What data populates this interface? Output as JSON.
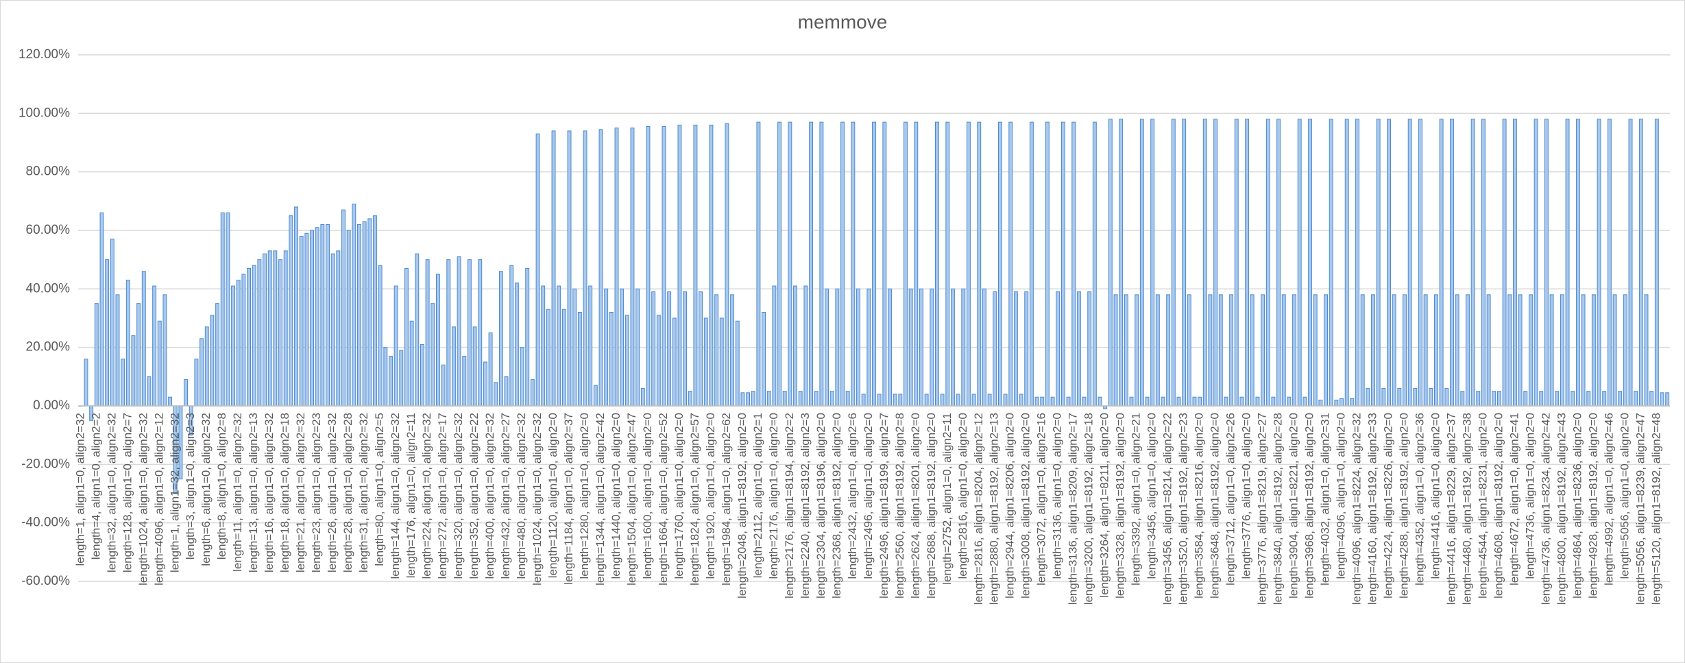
{
  "chart_data": {
    "type": "bar",
    "title": "memmove",
    "color": "#a9c8ec",
    "edge_color": "#4a8ad0",
    "grid": true,
    "ylim": [
      -60,
      120
    ],
    "yticks": [
      {
        "value": -60,
        "label": "-60.00%"
      },
      {
        "value": -40,
        "label": "-40.00%"
      },
      {
        "value": -20,
        "label": "-20.00%"
      },
      {
        "value": 0,
        "label": "0.00%"
      },
      {
        "value": 20,
        "label": "20.00%"
      },
      {
        "value": 40,
        "label": "40.00%"
      },
      {
        "value": 60,
        "label": "60.00%"
      },
      {
        "value": 80,
        "label": "80.00%"
      },
      {
        "value": 100,
        "label": "100.00%"
      },
      {
        "value": 120,
        "label": "120.00%"
      }
    ],
    "categories": [
      "length=1, align1=0, align2=32",
      null,
      null,
      "length=4, align1=0, align2=2",
      null,
      null,
      "length=32, align1=0, align2=32",
      null,
      null,
      "length=128, align1=0, align2=7",
      null,
      null,
      "length=1024, align1=0, align2=32",
      null,
      null,
      "length=4096, align1=0, align2=12",
      null,
      null,
      "length=1, align1=32, align2=32",
      null,
      null,
      "length=3, align1=0, align2=3",
      null,
      null,
      "length=6, align1=0, align2=32",
      null,
      null,
      "length=8, align1=0, align2=8",
      null,
      null,
      "length=11, align1=0, align2=32",
      null,
      null,
      "length=13, align1=0, align2=13",
      null,
      null,
      "length=16, align1=0, align2=32",
      null,
      null,
      "length=18, align1=0, align2=18",
      null,
      null,
      "length=21, align1=0, align2=32",
      null,
      null,
      "length=23, align1=0, align2=23",
      null,
      null,
      "length=26, align1=0, align2=32",
      null,
      null,
      "length=28, align1=0, align2=28",
      null,
      null,
      "length=31, align1=0, align2=32",
      null,
      null,
      "length=80, align1=0, align2=5",
      null,
      null,
      "length=144, align1=0, align2=32",
      null,
      null,
      "length=176, align1=0, align2=11",
      null,
      null,
      "length=224, align1=0, align2=32",
      null,
      null,
      "length=272, align1=0, align2=17",
      null,
      null,
      "length=320, align1=0, align2=32",
      null,
      null,
      "length=352, align1=0, align2=22",
      null,
      null,
      "length=400, align1=0, align2=32",
      null,
      null,
      "length=432, align1=0, align2=27",
      null,
      null,
      "length=480, align1=0, align2=32",
      null,
      null,
      "length=1024, align1=0, align2=32",
      null,
      null,
      "length=1120, align1=0, align2=0",
      null,
      null,
      "length=1184, align1=0, align2=37",
      null,
      null,
      "length=1280, align1=0, align2=0",
      null,
      null,
      "length=1344, align1=0, align2=42",
      null,
      null,
      "length=1440, align1=0, align2=0",
      null,
      null,
      "length=1504, align1=0, align2=47",
      null,
      null,
      "length=1600, align1=0, align2=0",
      null,
      null,
      "length=1664, align1=0, align2=52",
      null,
      null,
      "length=1760, align1=0, align2=0",
      null,
      null,
      "length=1824, align1=0, align2=57",
      null,
      null,
      "length=1920, align1=0, align2=0",
      null,
      null,
      "length=1984, align1=0, align2=62",
      null,
      null,
      "length=2048, align1=8192, align2=0",
      null,
      null,
      "length=2112, align1=0, align2=1",
      null,
      null,
      "length=2176, align1=0, align2=0",
      null,
      null,
      "length=2176, align1=8194, align2=2",
      null,
      null,
      "length=2240, align1=8192, align2=3",
      null,
      null,
      "length=2304, align1=8196, align2=0",
      null,
      null,
      "length=2368, align1=8192, align2=0",
      null,
      null,
      "length=2432, align1=0, align2=6",
      null,
      null,
      "length=2496, align1=0, align2=0",
      null,
      null,
      "length=2496, align1=8199, align2=7",
      null,
      null,
      "length=2560, align1=8192, align2=8",
      null,
      null,
      "length=2624, align1=8201, align2=0",
      null,
      null,
      "length=2688, align1=8192, align2=0",
      null,
      null,
      "length=2752, align1=0, align2=11",
      null,
      null,
      "length=2816, align1=0, align2=0",
      null,
      null,
      "length=2816, align1=8204, align2=12",
      null,
      null,
      "length=2880, align1=8192, align2=13",
      null,
      null,
      "length=2944, align1=8206, align2=0",
      null,
      null,
      "length=3008, align1=8192, align2=0",
      null,
      null,
      "length=3072, align1=0, align2=16",
      null,
      null,
      "length=3136, align1=0, align2=0",
      null,
      null,
      "length=3136, align1=8209, align2=17",
      null,
      null,
      "length=3200, align1=8192, align2=18",
      null,
      null,
      "length=3264, align1=8211, align2=0",
      null,
      null,
      "length=3328, align1=8192, align2=0",
      null,
      null,
      "length=3392, align1=0, align2=21",
      null,
      null,
      "length=3456, align1=0, align2=0",
      null,
      null,
      "length=3456, align1=8214, align2=22",
      null,
      null,
      "length=3520, align1=8192, align2=23",
      null,
      null,
      "length=3584, align1=8216, align2=0",
      null,
      null,
      "length=3648, align1=8192, align2=0",
      null,
      null,
      "length=3712, align1=0, align2=26",
      null,
      null,
      "length=3776, align1=0, align2=0",
      null,
      null,
      "length=3776, align1=8219, align2=27",
      null,
      null,
      "length=3840, align1=8192, align2=28",
      null,
      null,
      "length=3904, align1=8221, align2=0",
      null,
      null,
      "length=3968, align1=8192, align2=0",
      null,
      null,
      "length=4032, align1=0, align2=31",
      null,
      null,
      "length=4096, align1=0, align2=0",
      null,
      null,
      "length=4096, align1=8224, align2=32",
      null,
      null,
      "length=4160, align1=8192, align2=33",
      null,
      null,
      "length=4224, align1=8226, align2=0",
      null,
      null,
      "length=4288, align1=8192, align2=0",
      null,
      null,
      "length=4352, align1=0, align2=36",
      null,
      null,
      "length=4416, align1=0, align2=0",
      null,
      null,
      "length=4416, align1=8229, align2=37",
      null,
      null,
      "length=4480, align1=8192, align2=38",
      null,
      null,
      "length=4544, align1=8231, align2=0",
      null,
      null,
      "length=4608, align1=8192, align2=0",
      null,
      null,
      "length=4672, align1=0, align2=41",
      null,
      null,
      "length=4736, align1=0, align2=0",
      null,
      null,
      "length=4736, align1=8234, align2=42",
      null,
      null,
      "length=4800, align1=8192, align2=43",
      null,
      null,
      "length=4864, align1=8236, align2=0",
      null,
      null,
      "length=4928, align1=8192, align2=0",
      null,
      null,
      "length=4992, align1=0, align2=46",
      null,
      null,
      "length=5056, align1=0, align2=0",
      null,
      null,
      "length=5056, align1=8239, align2=47",
      null,
      null,
      "length=5120, align1=8192, align2=48",
      null,
      null
    ],
    "values": [
      0,
      16,
      -5,
      35,
      66,
      50,
      57,
      38,
      16,
      43,
      24,
      35,
      46,
      10,
      41,
      29,
      38,
      3,
      -30,
      -25,
      9,
      -10,
      16,
      23,
      27,
      31,
      35,
      66,
      66,
      41,
      43,
      45,
      47,
      48,
      50,
      52,
      53,
      53,
      50,
      53,
      65,
      68,
      58,
      59,
      60,
      61,
      62,
      62,
      52,
      53,
      67,
      60,
      69,
      62,
      63,
      64,
      65,
      48,
      20,
      17,
      41,
      19,
      47,
      29,
      52,
      21,
      50,
      35,
      45,
      14,
      50,
      27,
      51,
      17,
      50,
      27,
      50,
      15,
      25,
      8,
      46,
      10,
      48,
      42,
      20,
      47,
      9,
      93,
      41,
      33,
      94,
      41,
      33,
      94,
      40,
      32,
      94,
      41,
      7,
      94.5,
      40,
      32,
      95,
      40,
      31,
      95,
      40,
      6,
      95.5,
      39,
      31,
      95.5,
      39,
      30,
      96,
      39,
      5,
      96,
      39,
      30,
      96,
      38,
      30,
      96.5,
      38,
      29,
      4.5,
      4.5,
      5,
      97,
      32,
      5,
      41,
      97,
      5,
      97,
      41,
      5,
      41,
      97,
      5,
      97,
      40,
      5,
      40,
      97,
      5,
      97,
      40,
      4,
      40,
      97,
      4,
      97,
      40,
      4,
      4,
      97,
      40,
      97,
      40,
      4,
      40,
      97,
      4,
      97,
      40,
      4,
      40,
      97,
      4,
      97,
      40,
      4,
      39,
      97,
      4,
      97,
      39,
      4,
      39,
      97,
      3,
      3,
      97,
      3,
      39,
      97,
      3,
      97,
      39,
      3,
      39,
      97,
      3,
      -1,
      98,
      38,
      98,
      38,
      3,
      38,
      98,
      3,
      98,
      38,
      3,
      38,
      98,
      3,
      98,
      38,
      3,
      3,
      98,
      38,
      98,
      38,
      3,
      38,
      98,
      3,
      98,
      38,
      3,
      38,
      98,
      3,
      98,
      38,
      3,
      38,
      98,
      3,
      98,
      38,
      2,
      38,
      98,
      2,
      2.5,
      98,
      2.5,
      98,
      38,
      6,
      38,
      98,
      6,
      98,
      38,
      6,
      38,
      98,
      6,
      98,
      38,
      6,
      38,
      98,
      6,
      98,
      38,
      5,
      38,
      98,
      5,
      98,
      38,
      5,
      5,
      98,
      38,
      98,
      38,
      5,
      38,
      98,
      5,
      98,
      38,
      5,
      38,
      98,
      5,
      98,
      38,
      5,
      38,
      98,
      5,
      98,
      38,
      5,
      38,
      98,
      5,
      98,
      38,
      5,
      98,
      4.5,
      4.5
    ]
  }
}
